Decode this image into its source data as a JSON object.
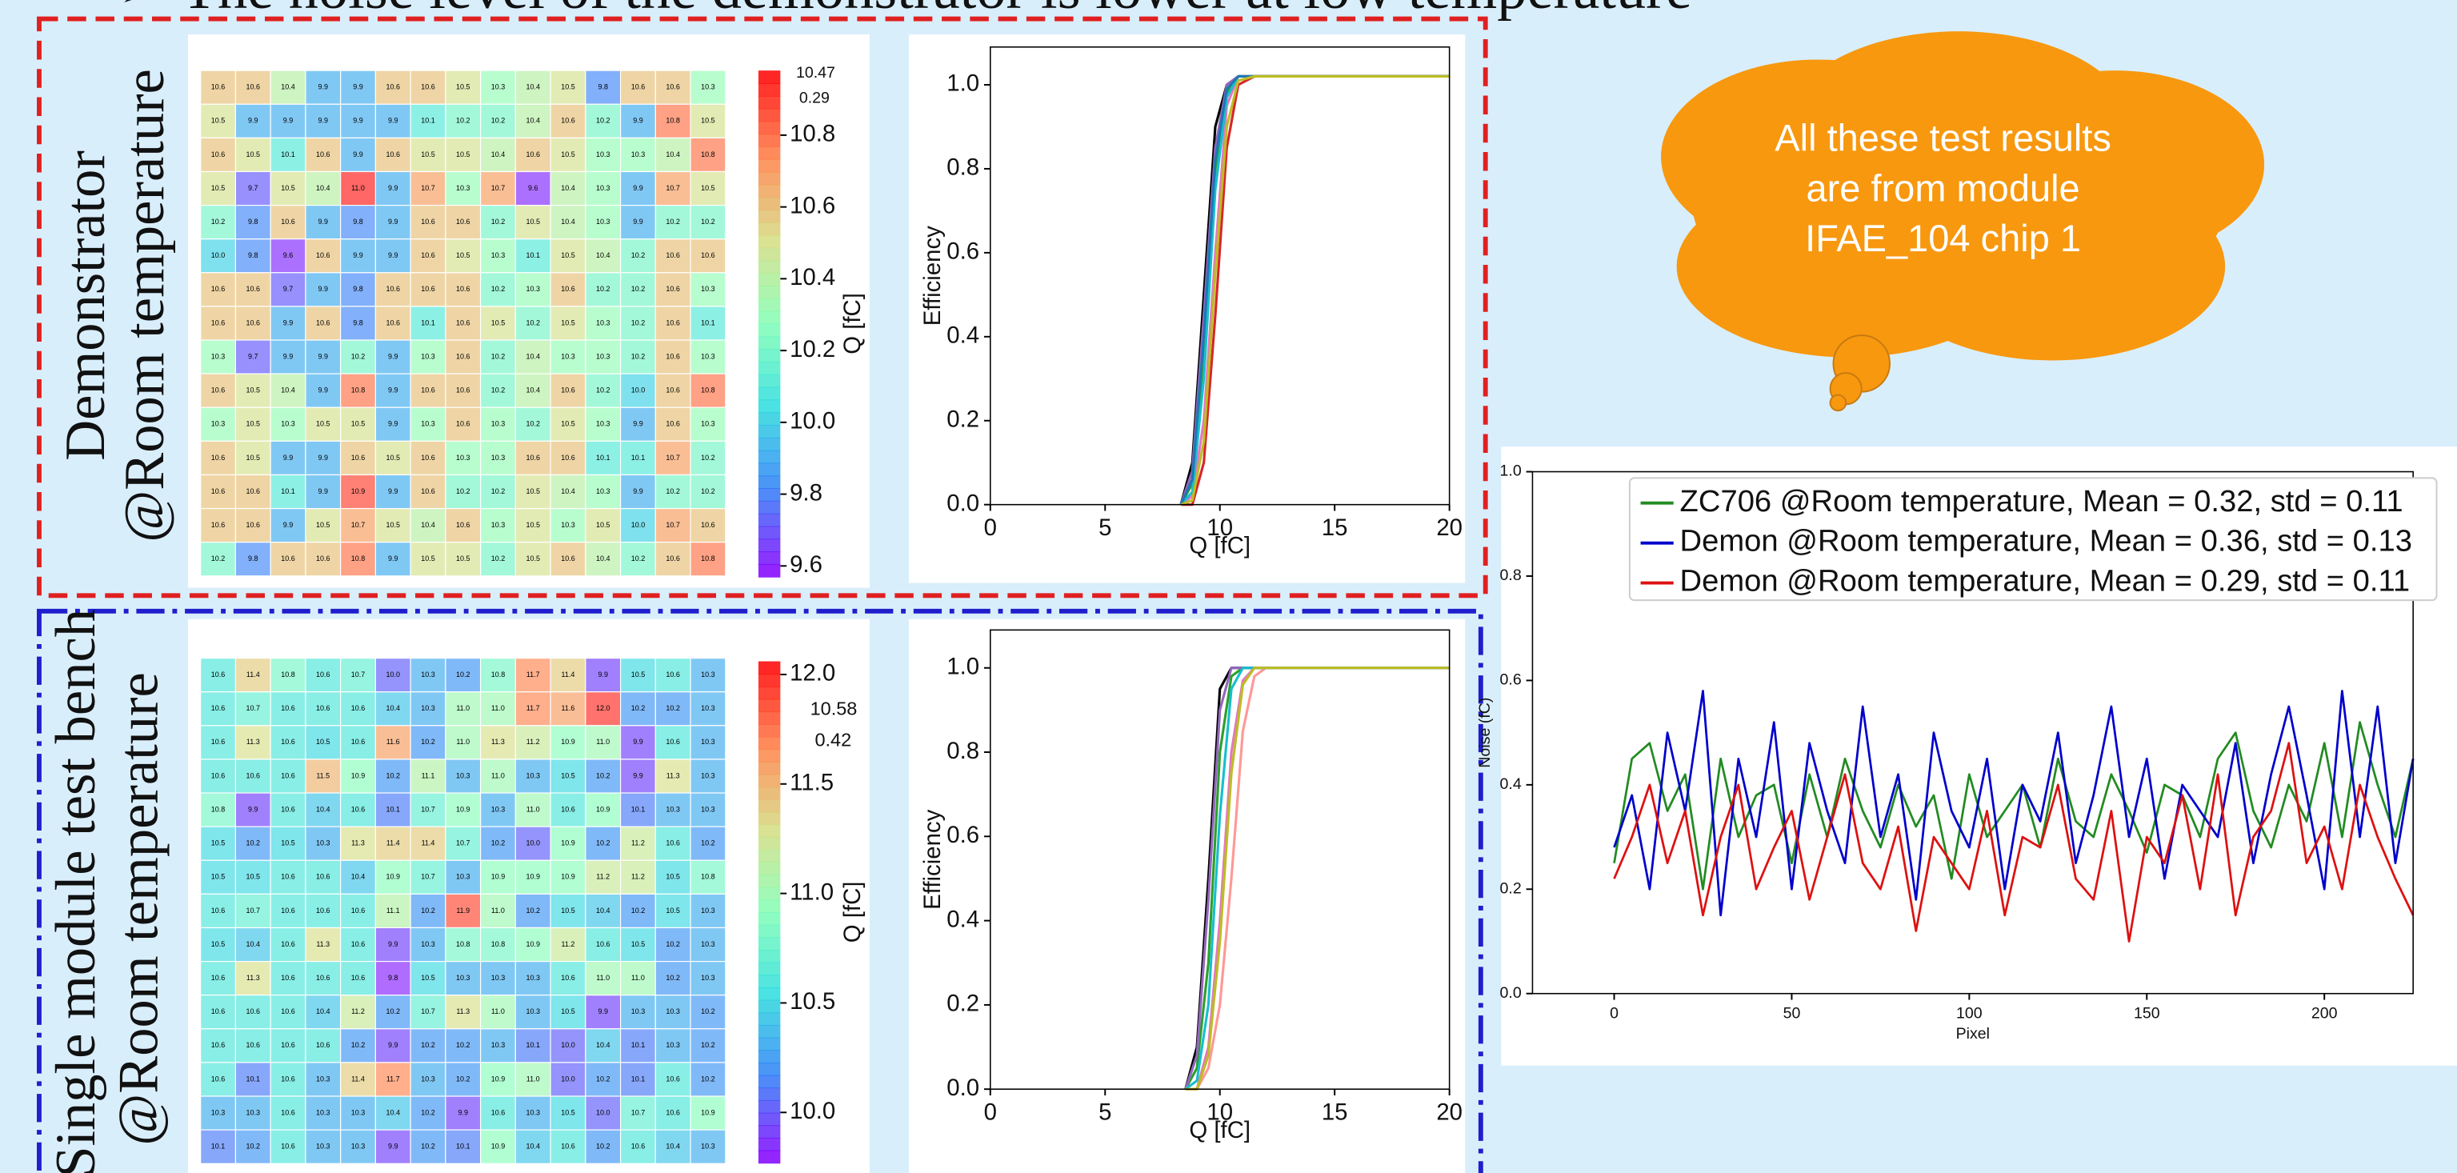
{
  "header": {
    "title": "➢ The noise level of the demonstrator is lower at low temperature"
  },
  "panels": [
    {
      "label": [
        "Demonstrator",
        "@Room temperature"
      ],
      "heatmap": {
        "clim": [
          9.57,
          10.98
        ],
        "rows": [
          [
            "10.6",
            "10.6",
            "10.4",
            "9.9",
            "9.9",
            "10.6",
            "10.6",
            "10.5",
            "10.3",
            "10.4",
            "10.5",
            "9.8",
            "10.6",
            "10.6",
            "10.3"
          ],
          [
            "10.5",
            "9.9",
            "9.9",
            "9.9",
            "9.9",
            "9.9",
            "10.1",
            "10.2",
            "10.2",
            "10.4",
            "10.6",
            "10.2",
            "9.9",
            "10.8",
            "10.5"
          ],
          [
            "10.6",
            "10.5",
            "10.1",
            "10.6",
            "9.9",
            "10.6",
            "10.5",
            "10.5",
            "10.4",
            "10.6",
            "10.5",
            "10.3",
            "10.3",
            "10.4",
            "10.8"
          ],
          [
            "10.5",
            "9.7",
            "10.5",
            "10.4",
            "11.0",
            "9.9",
            "10.7",
            "10.3",
            "10.7",
            "9.6",
            "10.4",
            "10.3",
            "9.9",
            "10.7",
            "10.5"
          ],
          [
            "10.2",
            "9.8",
            "10.6",
            "9.9",
            "9.8",
            "9.9",
            "10.6",
            "10.6",
            "10.2",
            "10.5",
            "10.4",
            "10.3",
            "9.9",
            "10.2",
            "10.2"
          ],
          [
            "10.0",
            "9.8",
            "9.6",
            "10.6",
            "9.9",
            "9.9",
            "10.6",
            "10.5",
            "10.3",
            "10.1",
            "10.5",
            "10.4",
            "10.2",
            "10.6",
            "10.6"
          ],
          [
            "10.6",
            "10.6",
            "9.7",
            "9.9",
            "9.8",
            "10.6",
            "10.6",
            "10.6",
            "10.2",
            "10.3",
            "10.6",
            "10.2",
            "10.2",
            "10.6",
            "10.3"
          ],
          [
            "10.6",
            "10.6",
            "9.9",
            "10.6",
            "9.8",
            "10.6",
            "10.1",
            "10.6",
            "10.5",
            "10.2",
            "10.5",
            "10.3",
            "10.2",
            "10.6",
            "10.1"
          ],
          [
            "10.3",
            "9.7",
            "9.9",
            "9.9",
            "10.2",
            "9.9",
            "10.3",
            "10.6",
            "10.2",
            "10.4",
            "10.3",
            "10.3",
            "10.2",
            "10.6",
            "10.3"
          ],
          [
            "10.6",
            "10.5",
            "10.4",
            "9.9",
            "10.8",
            "9.9",
            "10.6",
            "10.6",
            "10.2",
            "10.4",
            "10.6",
            "10.2",
            "10.0",
            "10.6",
            "10.8"
          ],
          [
            "10.3",
            "10.5",
            "10.3",
            "10.5",
            "10.5",
            "9.9",
            "10.3",
            "10.6",
            "10.3",
            "10.2",
            "10.5",
            "10.3",
            "9.9",
            "10.6",
            "10.3"
          ],
          [
            "10.6",
            "10.5",
            "9.9",
            "9.9",
            "10.6",
            "10.5",
            "10.6",
            "10.3",
            "10.3",
            "10.6",
            "10.6",
            "10.1",
            "10.1",
            "10.7",
            "10.2"
          ],
          [
            "10.6",
            "10.6",
            "10.1",
            "9.9",
            "10.9",
            "9.9",
            "10.6",
            "10.2",
            "10.2",
            "10.5",
            "10.4",
            "10.3",
            "9.9",
            "10.2",
            "10.2"
          ],
          [
            "10.6",
            "10.6",
            "9.9",
            "10.5",
            "10.7",
            "10.5",
            "10.4",
            "10.6",
            "10.3",
            "10.5",
            "10.3",
            "10.5",
            "10.0",
            "10.7",
            "10.6"
          ],
          [
            "10.2",
            "9.8",
            "10.6",
            "10.6",
            "10.8",
            "9.9",
            "10.5",
            "10.5",
            "10.2",
            "10.5",
            "10.6",
            "10.4",
            "10.2",
            "10.6",
            "10.8"
          ]
        ],
        "colorbar": {
          "label": "Q [fC]",
          "annotations": [
            "10.47",
            "0.29"
          ],
          "ticks": [
            9.6,
            9.8,
            {
              "value": 10,
              "label": "10.0"
            },
            10.2,
            10.4,
            10.6,
            10.8
          ]
        }
      },
      "efficiency": {
        "type": "line",
        "xlabel": "Q [fC]",
        "ylabel": "Efficiency",
        "xlim": [
          0,
          20
        ],
        "ylim": [
          0,
          1.09
        ],
        "xticks": [
          0,
          5,
          10,
          15,
          20
        ],
        "yticks": [
          {
            "value": 0,
            "label": "0.0"
          },
          0.2,
          0.4,
          0.6,
          0.8,
          {
            "value": 1,
            "label": "1.0"
          }
        ],
        "x": [
          8.3,
          8.8,
          9.3,
          9.8,
          10.3,
          10.8,
          11.5,
          20
        ],
        "series": [
          {
            "color": "#2ca02c",
            "values": [
              0,
              0.05,
              0.35,
              0.8,
              0.98,
              1.02,
              1.02,
              1.02
            ]
          },
          {
            "color": "#000000",
            "values": [
              0,
              0.1,
              0.5,
              0.9,
              1.0,
              1.02,
              1.02,
              1.02
            ]
          },
          {
            "color": "#e377c2",
            "values": [
              0,
              0.02,
              0.2,
              0.6,
              0.95,
              1.02,
              1.02,
              1.02
            ]
          },
          {
            "color": "#9467bd",
            "values": [
              0,
              0.08,
              0.45,
              0.85,
              1.0,
              1.02,
              1.02,
              1.02
            ]
          },
          {
            "color": "#d62728",
            "values": [
              0,
              0,
              0.1,
              0.45,
              0.85,
              1.0,
              1.02,
              1.02
            ]
          },
          {
            "color": "#17becf",
            "values": [
              0,
              0.03,
              0.3,
              0.75,
              0.97,
              1.02,
              1.02,
              1.02
            ]
          },
          {
            "color": "#1f77b4",
            "values": [
              0,
              0.06,
              0.4,
              0.82,
              0.99,
              1.02,
              1.02,
              1.02
            ]
          },
          {
            "color": "#bcbd22",
            "values": [
              0,
              0.01,
              0.15,
              0.55,
              0.9,
              1.01,
              1.02,
              1.02
            ]
          }
        ]
      }
    },
    {
      "label": [
        "Single module test bench",
        "@Room temperature"
      ],
      "heatmap": {
        "clim": [
          9.77,
          12.06
        ],
        "rows": [
          [
            "10.6",
            "11.4",
            "10.8",
            "10.6",
            "10.7",
            "10.0",
            "10.3",
            "10.2",
            "10.8",
            "11.7",
            "11.4",
            "9.9",
            "10.5",
            "10.6",
            "10.3"
          ],
          [
            "10.6",
            "10.7",
            "10.6",
            "10.6",
            "10.6",
            "10.4",
            "10.3",
            "11.0",
            "11.0",
            "11.7",
            "11.6",
            "12.0",
            "10.2",
            "10.2",
            "10.3"
          ],
          [
            "10.6",
            "11.3",
            "10.6",
            "10.5",
            "10.6",
            "11.6",
            "10.2",
            "11.0",
            "11.3",
            "11.2",
            "10.9",
            "11.0",
            "9.9",
            "10.6",
            "10.3"
          ],
          [
            "10.6",
            "10.6",
            "10.6",
            "11.5",
            "10.9",
            "10.2",
            "11.1",
            "10.3",
            "11.0",
            "10.3",
            "10.5",
            "10.2",
            "9.9",
            "11.3",
            "10.3"
          ],
          [
            "10.8",
            "9.9",
            "10.6",
            "10.4",
            "10.6",
            "10.1",
            "10.7",
            "10.9",
            "10.3",
            "11.0",
            "10.6",
            "10.9",
            "10.1",
            "10.3",
            "10.3"
          ],
          [
            "10.5",
            "10.2",
            "10.5",
            "10.3",
            "11.3",
            "11.4",
            "11.4",
            "10.7",
            "10.2",
            "10.0",
            "10.9",
            "10.2",
            "11.2",
            "10.6",
            "10.2"
          ],
          [
            "10.5",
            "10.5",
            "10.6",
            "10.6",
            "10.4",
            "10.9",
            "10.7",
            "10.3",
            "10.9",
            "10.9",
            "10.9",
            "11.2",
            "11.2",
            "10.5",
            "10.8"
          ],
          [
            "10.6",
            "10.7",
            "10.6",
            "10.6",
            "10.6",
            "11.1",
            "10.2",
            "11.9",
            "11.0",
            "10.2",
            "10.5",
            "10.4",
            "10.2",
            "10.5",
            "10.3"
          ],
          [
            "10.5",
            "10.4",
            "10.6",
            "11.3",
            "10.6",
            "9.9",
            "10.3",
            "10.8",
            "10.8",
            "10.9",
            "11.2",
            "10.6",
            "10.5",
            "10.2",
            "10.3"
          ],
          [
            "10.6",
            "11.3",
            "10.6",
            "10.6",
            "10.6",
            "9.8",
            "10.5",
            "10.3",
            "10.3",
            "10.3",
            "10.6",
            "11.0",
            "11.0",
            "10.2",
            "10.3"
          ],
          [
            "10.6",
            "10.6",
            "10.6",
            "10.4",
            "11.2",
            "10.2",
            "10.7",
            "11.3",
            "11.0",
            "10.3",
            "10.5",
            "9.9",
            "10.3",
            "10.3",
            "10.2"
          ],
          [
            "10.6",
            "10.6",
            "10.6",
            "10.6",
            "10.2",
            "9.9",
            "10.2",
            "10.2",
            "10.3",
            "10.1",
            "10.0",
            "10.4",
            "10.1",
            "10.3",
            "10.2"
          ],
          [
            "10.6",
            "10.1",
            "10.6",
            "10.3",
            "11.4",
            "11.7",
            "10.3",
            "10.2",
            "10.9",
            "11.0",
            "10.0",
            "10.2",
            "10.1",
            "10.6",
            "10.2"
          ],
          [
            "10.3",
            "10.3",
            "10.6",
            "10.3",
            "10.3",
            "10.4",
            "10.2",
            "9.9",
            "10.6",
            "10.3",
            "10.5",
            "10.0",
            "10.7",
            "10.6",
            "10.9"
          ],
          [
            "10.1",
            "10.2",
            "10.6",
            "10.3",
            "10.3",
            "9.9",
            "10.2",
            "10.1",
            "10.9",
            "10.4",
            "10.6",
            "10.2",
            "10.6",
            "10.4",
            "10.3"
          ]
        ],
        "colorbar": {
          "label": "Q [fC]",
          "annotations": [
            "10.58",
            "0.42"
          ],
          "ticks": [
            {
              "value": 10,
              "label": "10.0"
            },
            10.5,
            {
              "value": 11,
              "label": "11.0"
            },
            11.5,
            {
              "value": 12,
              "label": "12.0"
            }
          ]
        }
      },
      "efficiency": {
        "type": "line",
        "xlabel": "Q [fC]",
        "ylabel": "Efficiency",
        "xlim": [
          0,
          20
        ],
        "ylim": [
          0,
          1.09
        ],
        "xticks": [
          0,
          5,
          10,
          15,
          20
        ],
        "yticks": [
          {
            "value": 0,
            "label": "0.0"
          },
          0.2,
          0.4,
          0.6,
          0.8,
          {
            "value": 1,
            "label": "1.0"
          }
        ],
        "x": [
          8.5,
          9.0,
          9.5,
          10.0,
          10.5,
          11.0,
          11.5,
          12.0,
          20
        ],
        "series": [
          {
            "color": "#000000",
            "values": [
              0,
              0.1,
              0.5,
              0.95,
              1,
              1,
              1,
              1,
              1
            ]
          },
          {
            "color": "#2ca02c",
            "values": [
              0,
              0.05,
              0.3,
              0.8,
              0.98,
              1,
              1,
              1,
              1
            ]
          },
          {
            "color": "#e377c2",
            "values": [
              0,
              0,
              0.1,
              0.4,
              0.8,
              0.97,
              1,
              1,
              1
            ]
          },
          {
            "color": "#ff9896",
            "values": [
              0,
              0,
              0.05,
              0.2,
              0.5,
              0.85,
              0.98,
              1,
              1
            ]
          },
          {
            "color": "#9467bd",
            "values": [
              0,
              0.08,
              0.45,
              0.9,
              1,
              1,
              1,
              1,
              1
            ]
          },
          {
            "color": "#17becf",
            "values": [
              0,
              0.02,
              0.2,
              0.65,
              0.95,
              1,
              1,
              1,
              1
            ]
          },
          {
            "color": "#bcbd22",
            "values": [
              0,
              0,
              0.08,
              0.35,
              0.75,
              0.96,
              1,
              1,
              1
            ]
          }
        ]
      }
    }
  ],
  "callout": {
    "lines": [
      "All these test results",
      "are from module",
      "IFAE_104 chip 1"
    ]
  },
  "noise": {
    "type": "line",
    "xlabel": "Pixel",
    "ylabel": "Noise (fC)",
    "xlim": [
      -23,
      225
    ],
    "ylim": [
      0,
      1
    ],
    "xticks": [
      0,
      50,
      100,
      150,
      200
    ],
    "yticks": [
      {
        "value": 0,
        "label": "0.0"
      },
      0.2,
      0.4,
      0.6,
      0.8,
      {
        "value": 1,
        "label": "1.0"
      }
    ],
    "x": [
      0,
      5,
      10,
      15,
      20,
      25,
      30,
      35,
      40,
      45,
      50,
      55,
      60,
      65,
      70,
      75,
      80,
      85,
      90,
      95,
      100,
      105,
      110,
      115,
      120,
      125,
      130,
      135,
      140,
      145,
      150,
      155,
      160,
      165,
      170,
      175,
      180,
      185,
      190,
      195,
      200,
      205,
      210,
      215,
      220,
      225
    ],
    "series": [
      {
        "name": "ZC706 @Room temperature, Mean = 0.32, std = 0.11",
        "color": "#228b22",
        "values": [
          0.25,
          0.45,
          0.48,
          0.35,
          0.42,
          0.2,
          0.45,
          0.3,
          0.38,
          0.4,
          0.25,
          0.42,
          0.3,
          0.45,
          0.35,
          0.28,
          0.4,
          0.32,
          0.38,
          0.22,
          0.42,
          0.3,
          0.35,
          0.4,
          0.28,
          0.45,
          0.33,
          0.3,
          0.42,
          0.35,
          0.27,
          0.4,
          0.38,
          0.3,
          0.45,
          0.5,
          0.35,
          0.28,
          0.4,
          0.33,
          0.48,
          0.3,
          0.52,
          0.4,
          0.3,
          0.45
        ]
      },
      {
        "name": "Demon @Room temperature, Mean = 0.36, std = 0.13",
        "color": "#0000cc",
        "values": [
          0.28,
          0.38,
          0.2,
          0.5,
          0.35,
          0.58,
          0.15,
          0.45,
          0.3,
          0.52,
          0.2,
          0.48,
          0.35,
          0.25,
          0.55,
          0.3,
          0.42,
          0.18,
          0.5,
          0.35,
          0.28,
          0.45,
          0.2,
          0.4,
          0.33,
          0.5,
          0.25,
          0.38,
          0.55,
          0.3,
          0.45,
          0.22,
          0.4,
          0.35,
          0.3,
          0.48,
          0.25,
          0.42,
          0.55,
          0.38,
          0.2,
          0.58,
          0.3,
          0.55,
          0.25,
          0.45
        ]
      },
      {
        "name": "Demon @Room temperature, Mean = 0.29, std = 0.11",
        "color": "#dd1111",
        "values": [
          0.22,
          0.3,
          0.4,
          0.25,
          0.35,
          0.15,
          0.3,
          0.4,
          0.2,
          0.28,
          0.35,
          0.18,
          0.3,
          0.42,
          0.25,
          0.2,
          0.32,
          0.12,
          0.3,
          0.25,
          0.2,
          0.35,
          0.15,
          0.3,
          0.28,
          0.4,
          0.22,
          0.18,
          0.35,
          0.1,
          0.3,
          0.25,
          0.38,
          0.2,
          0.42,
          0.15,
          0.3,
          0.35,
          0.48,
          0.25,
          0.32,
          0.2,
          0.4,
          0.3,
          0.22,
          0.15
        ]
      }
    ]
  }
}
